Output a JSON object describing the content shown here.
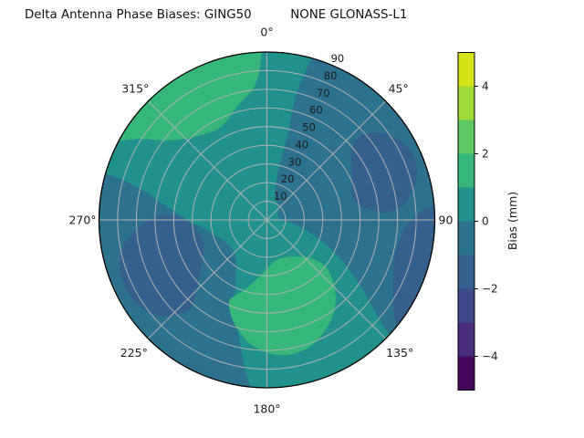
{
  "title": "Delta Antenna Phase Biases: GING50          NONE GLONASS-L1",
  "chart_data": {
    "type": "polar_contour",
    "title_left": "Delta Antenna Phase Biases: GING50",
    "title_right": "NONE GLONASS-L1",
    "theta_direction": "clockwise_from_north",
    "theta_ticks": [
      {
        "label": "0°",
        "deg": 0,
        "dist": 206
      },
      {
        "label": "45°",
        "deg": 45,
        "dist": 204
      },
      {
        "label": "90",
        "deg": 90,
        "dist": 196
      },
      {
        "label": "135°",
        "deg": 135,
        "dist": 206
      },
      {
        "label": "180°",
        "deg": 180,
        "dist": 207
      },
      {
        "label": "225°",
        "deg": 225,
        "dist": 206
      },
      {
        "label": "270°",
        "deg": 270,
        "dist": 202
      },
      {
        "label": "315°",
        "deg": 315,
        "dist": 204
      }
    ],
    "r_axis": {
      "max": 90,
      "ticks": [
        10,
        20,
        30,
        40,
        50,
        60,
        70,
        80,
        90
      ],
      "tick_label_angle_deg": 22.5
    },
    "levels_mm": [
      -5,
      -4,
      -3,
      -2,
      -1,
      0,
      1,
      2,
      3,
      4,
      5
    ],
    "grid_color": "#b0b0b0",
    "outline_color": "#000000",
    "text_color": "#1a1a1a",
    "base_fill": {
      "bias_range_mm": "0 to 1",
      "color": "#21918c"
    },
    "regions": [
      {
        "name": "right-mid-negative-region",
        "bias_range_mm": "-1 to 0",
        "color": "#2c728e",
        "points_theta_r": [
          [
            16,
            95
          ],
          [
            30,
            97
          ],
          [
            45,
            97
          ],
          [
            60,
            97
          ],
          [
            75,
            97
          ],
          [
            90,
            97
          ],
          [
            105,
            97
          ],
          [
            120,
            97
          ],
          [
            134,
            95
          ],
          [
            131,
            78
          ],
          [
            126,
            64
          ],
          [
            120,
            50
          ],
          [
            113,
            36
          ],
          [
            106,
            24
          ],
          [
            98,
            14
          ],
          [
            88,
            8
          ],
          [
            78,
            6
          ],
          [
            66,
            6
          ],
          [
            54,
            8
          ],
          [
            42,
            10
          ],
          [
            30,
            11
          ],
          [
            20,
            12
          ],
          [
            15,
            16
          ],
          [
            13,
            24
          ],
          [
            13,
            36
          ],
          [
            14,
            48
          ],
          [
            13,
            58
          ],
          [
            13,
            68
          ],
          [
            14,
            78
          ],
          [
            15,
            86
          ]
        ]
      },
      {
        "name": "left-bottom-negative-region",
        "bias_range_mm": "-1 to 0",
        "color": "#2c728e",
        "points_theta_r": [
          [
            184,
            95
          ],
          [
            196,
            97
          ],
          [
            210,
            97
          ],
          [
            225,
            97
          ],
          [
            240,
            97
          ],
          [
            255,
            97
          ],
          [
            270,
            97
          ],
          [
            280,
            96
          ],
          [
            286,
            95
          ],
          [
            286,
            86
          ],
          [
            285,
            76
          ],
          [
            283,
            66
          ],
          [
            279,
            57
          ],
          [
            274,
            48
          ],
          [
            268,
            40
          ],
          [
            261,
            33
          ],
          [
            252,
            28
          ],
          [
            242,
            25
          ],
          [
            232,
            24
          ],
          [
            223,
            25
          ],
          [
            215,
            28
          ],
          [
            208,
            36
          ],
          [
            202,
            46
          ],
          [
            196,
            58
          ],
          [
            191,
            72
          ],
          [
            187,
            86
          ]
        ]
      },
      {
        "name": "upper-right-deep-negative-blob",
        "bias_range_mm": "-2 to -1",
        "color": "#35608d",
        "points_theta_r": [
          [
            47,
            64
          ],
          [
            52,
            57
          ],
          [
            60,
            53
          ],
          [
            68,
            49
          ],
          [
            75,
            47
          ],
          [
            81,
            50
          ],
          [
            85,
            57
          ],
          [
            87,
            65
          ],
          [
            84,
            74
          ],
          [
            78,
            81
          ],
          [
            71,
            86
          ],
          [
            63,
            86
          ],
          [
            56,
            81
          ],
          [
            50,
            74
          ]
        ]
      },
      {
        "name": "right-rim-deep-negative-arc",
        "bias_range_mm": "-2 to -1",
        "color": "#35608d",
        "points_theta_r": [
          [
            84,
            95
          ],
          [
            95,
            97
          ],
          [
            110,
            97
          ],
          [
            125,
            97
          ],
          [
            131,
            95
          ],
          [
            127,
            85
          ],
          [
            121,
            79
          ],
          [
            114,
            74
          ],
          [
            106,
            71
          ],
          [
            97,
            72
          ],
          [
            90,
            77
          ],
          [
            86,
            84
          ]
        ]
      },
      {
        "name": "left-deep-negative-blob",
        "bias_range_mm": "-2 to -1",
        "color": "#35608d",
        "points_theta_r": [
          [
            220,
            62
          ],
          [
            224,
            72
          ],
          [
            230,
            80
          ],
          [
            238,
            84
          ],
          [
            247,
            85
          ],
          [
            256,
            82
          ],
          [
            263,
            75
          ],
          [
            269,
            66
          ],
          [
            273,
            56
          ],
          [
            272,
            46
          ],
          [
            265,
            39
          ],
          [
            255,
            36
          ],
          [
            245,
            37
          ],
          [
            236,
            42
          ],
          [
            228,
            50
          ],
          [
            223,
            56
          ]
        ]
      },
      {
        "name": "upper-left-positive-blob",
        "bias_range_mm": "1 to 2",
        "color": "#35b779",
        "points_theta_r": [
          [
            296,
            95
          ],
          [
            299,
            88
          ],
          [
            303,
            80
          ],
          [
            306,
            73
          ],
          [
            310,
            66
          ],
          [
            317,
            60
          ],
          [
            324,
            57
          ],
          [
            331,
            55
          ],
          [
            338,
            57
          ],
          [
            344,
            62
          ],
          [
            349,
            66
          ],
          [
            354,
            70
          ],
          [
            357,
            78
          ],
          [
            358,
            88
          ],
          [
            359,
            95
          ],
          [
            350,
            97
          ],
          [
            340,
            97
          ],
          [
            330,
            97
          ],
          [
            320,
            97
          ],
          [
            310,
            97
          ],
          [
            302,
            96
          ]
        ]
      },
      {
        "name": "bottom-positive-blob",
        "bias_range_mm": "1 to 2",
        "color": "#35b779",
        "points_theta_r": [
          [
            206,
            48
          ],
          [
            200,
            56
          ],
          [
            194,
            62
          ],
          [
            187,
            68
          ],
          [
            179,
            72
          ],
          [
            170,
            74
          ],
          [
            160,
            72
          ],
          [
            150,
            66
          ],
          [
            142,
            60
          ],
          [
            135,
            52
          ],
          [
            129,
            43
          ],
          [
            128,
            37
          ],
          [
            132,
            30
          ],
          [
            139,
            26
          ],
          [
            148,
            23
          ],
          [
            158,
            22
          ],
          [
            168,
            22
          ],
          [
            177,
            25
          ],
          [
            185,
            29
          ],
          [
            192,
            34
          ],
          [
            198,
            40
          ],
          [
            203,
            44
          ]
        ]
      }
    ],
    "colorbar": {
      "label": "Bias (mm)",
      "vmin": -5,
      "vmax": 5,
      "tick_values": [
        4,
        2,
        0,
        -2,
        -4
      ],
      "tick_labels": [
        "4",
        "2",
        "0",
        "−2",
        "−4"
      ],
      "segment_colors_top_to_bottom": [
        "#d8e219",
        "#a0da39",
        "#5ec962",
        "#35b779",
        "#21918c",
        "#2c728e",
        "#35608d",
        "#3e4989",
        "#472d7b",
        "#46085c"
      ]
    }
  }
}
